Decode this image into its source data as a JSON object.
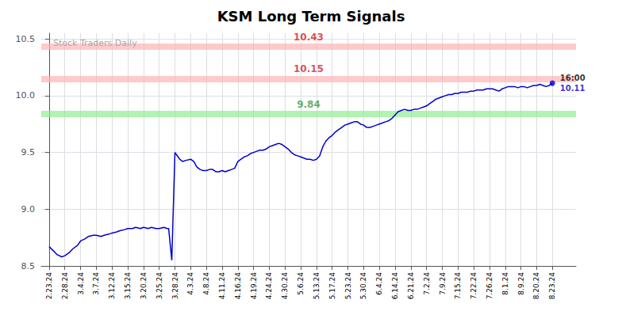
{
  "chart_data": {
    "type": "line",
    "title": "KSM Long Term Signals",
    "watermark": "Stock Traders Daily",
    "grid": true,
    "xlim": [
      -0.5,
      33.5
    ],
    "xticks": [
      {
        "value": 0,
        "label": "2.23.24"
      },
      {
        "value": 1,
        "label": "2.28.24"
      },
      {
        "value": 2,
        "label": "3.4.24"
      },
      {
        "value": 3,
        "label": "3.7.24"
      },
      {
        "value": 4,
        "label": "3.12.24"
      },
      {
        "value": 5,
        "label": "3.15.24"
      },
      {
        "value": 6,
        "label": "3.20.24"
      },
      {
        "value": 7,
        "label": "3.25.24"
      },
      {
        "value": 8,
        "label": "3.28.24"
      },
      {
        "value": 9,
        "label": "4.3.24"
      },
      {
        "value": 10,
        "label": "4.8.24"
      },
      {
        "value": 11,
        "label": "4.11.24"
      },
      {
        "value": 12,
        "label": "4.16.24"
      },
      {
        "value": 13,
        "label": "4.19.24"
      },
      {
        "value": 14,
        "label": "4.24.24"
      },
      {
        "value": 15,
        "label": "4.30.24"
      },
      {
        "value": 16,
        "label": "5.6.24"
      },
      {
        "value": 17,
        "label": "5.13.24"
      },
      {
        "value": 18,
        "label": "5.17.24"
      },
      {
        "value": 19,
        "label": "5.23.24"
      },
      {
        "value": 20,
        "label": "5.30.24"
      },
      {
        "value": 21,
        "label": "6.4.24"
      },
      {
        "value": 22,
        "label": "6.14.24"
      },
      {
        "value": 23,
        "label": "6.21.24"
      },
      {
        "value": 24,
        "label": "7.2.24"
      },
      {
        "value": 25,
        "label": "7.9.24"
      },
      {
        "value": 26,
        "label": "7.15.24"
      },
      {
        "value": 27,
        "label": "7.22.24"
      },
      {
        "value": 28,
        "label": "7.26.24"
      },
      {
        "value": 29,
        "label": "8.1.24"
      },
      {
        "value": 30,
        "label": "8.9.24"
      },
      {
        "value": 31,
        "label": "8.20.24"
      },
      {
        "value": 32,
        "label": "8.23.24"
      }
    ],
    "ylim": [
      8.5,
      10.55
    ],
    "yticks": [
      8.5,
      {
        "value": 9,
        "label": "9.0"
      },
      9.5,
      {
        "value": 10,
        "label": "10.0"
      },
      10.5
    ],
    "x": [
      0.0,
      0.3,
      0.5,
      0.8,
      1.0,
      1.3,
      1.5,
      1.8,
      2.0,
      2.3,
      2.5,
      2.8,
      3.0,
      3.3,
      3.5,
      3.8,
      4.0,
      4.3,
      4.5,
      4.8,
      5.0,
      5.3,
      5.5,
      5.8,
      6.0,
      6.3,
      6.5,
      6.8,
      7.0,
      7.3,
      7.5,
      7.6,
      7.8,
      8.0,
      8.1,
      8.3,
      8.5,
      8.7,
      9.0,
      9.2,
      9.4,
      9.6,
      9.8,
      10.0,
      10.2,
      10.4,
      10.6,
      10.8,
      11.0,
      11.2,
      11.4,
      11.6,
      11.8,
      12.0,
      12.2,
      12.4,
      12.6,
      12.8,
      13.0,
      13.2,
      13.4,
      13.6,
      13.8,
      14.0,
      14.2,
      14.4,
      14.6,
      14.8,
      15.0,
      15.2,
      15.4,
      15.6,
      15.8,
      16.0,
      16.2,
      16.4,
      16.6,
      16.8,
      17.0,
      17.2,
      17.4,
      17.6,
      17.8,
      18.0,
      18.2,
      18.4,
      18.6,
      18.8,
      19.0,
      19.2,
      19.4,
      19.6,
      19.8,
      20.0,
      20.2,
      20.4,
      20.6,
      20.8,
      21.0,
      21.2,
      21.4,
      21.6,
      21.8,
      22.0,
      22.2,
      22.4,
      22.6,
      22.8,
      23.0,
      23.2,
      23.4,
      23.6,
      23.8,
      24.0,
      24.2,
      24.4,
      24.6,
      24.8,
      25.0,
      25.2,
      25.4,
      25.6,
      25.8,
      26.0,
      26.2,
      26.4,
      26.6,
      26.8,
      27.0,
      27.2,
      27.4,
      27.6,
      27.8,
      28.0,
      28.2,
      28.4,
      28.6,
      28.8,
      29.0,
      29.2,
      29.4,
      29.6,
      29.8,
      30.0,
      30.2,
      30.4,
      30.6,
      30.8,
      31.0,
      31.2,
      31.4,
      31.6,
      31.8,
      32.0
    ],
    "series": [
      {
        "color": "#0000cc",
        "values": [
          8.67,
          8.63,
          8.6,
          8.58,
          8.59,
          8.62,
          8.65,
          8.68,
          8.72,
          8.74,
          8.76,
          8.77,
          8.77,
          8.76,
          8.77,
          8.78,
          8.79,
          8.8,
          8.81,
          8.82,
          8.83,
          8.83,
          8.84,
          8.83,
          8.84,
          8.83,
          8.84,
          8.83,
          8.83,
          8.84,
          8.83,
          8.83,
          8.55,
          9.5,
          9.48,
          9.44,
          9.42,
          9.43,
          9.44,
          9.42,
          9.37,
          9.35,
          9.34,
          9.34,
          9.35,
          9.35,
          9.33,
          9.33,
          9.34,
          9.33,
          9.34,
          9.35,
          9.36,
          9.42,
          9.44,
          9.46,
          9.47,
          9.49,
          9.5,
          9.51,
          9.52,
          9.52,
          9.53,
          9.55,
          9.56,
          9.57,
          9.58,
          9.57,
          9.55,
          9.53,
          9.5,
          9.48,
          9.47,
          9.46,
          9.45,
          9.44,
          9.44,
          9.43,
          9.44,
          9.47,
          9.55,
          9.6,
          9.63,
          9.65,
          9.68,
          9.7,
          9.72,
          9.74,
          9.75,
          9.76,
          9.77,
          9.77,
          9.75,
          9.74,
          9.72,
          9.72,
          9.73,
          9.74,
          9.75,
          9.76,
          9.77,
          9.78,
          9.8,
          9.83,
          9.86,
          9.87,
          9.88,
          9.87,
          9.87,
          9.88,
          9.88,
          9.89,
          9.9,
          9.91,
          9.93,
          9.95,
          9.97,
          9.98,
          9.99,
          10.0,
          10.01,
          10.01,
          10.02,
          10.02,
          10.03,
          10.03,
          10.03,
          10.04,
          10.04,
          10.05,
          10.05,
          10.05,
          10.06,
          10.06,
          10.06,
          10.05,
          10.04,
          10.06,
          10.07,
          10.08,
          10.08,
          10.08,
          10.07,
          10.08,
          10.08,
          10.07,
          10.08,
          10.09,
          10.09,
          10.1,
          10.09,
          10.08,
          10.09,
          10.11
        ]
      }
    ],
    "hlines": [
      {
        "y": 10.43,
        "label": "10.43",
        "color": "#ffb3b3",
        "label_color": "#cc0000"
      },
      {
        "y": 10.15,
        "label": "10.15",
        "color": "#ffb3b3",
        "label_color": "#cc0000"
      },
      {
        "y": 9.84,
        "label": "9.84",
        "color": "#90ee90",
        "label_color": "#228B22"
      }
    ],
    "last_point": {
      "y": 10.11,
      "label": "10.11",
      "time_label": "16:00"
    }
  }
}
